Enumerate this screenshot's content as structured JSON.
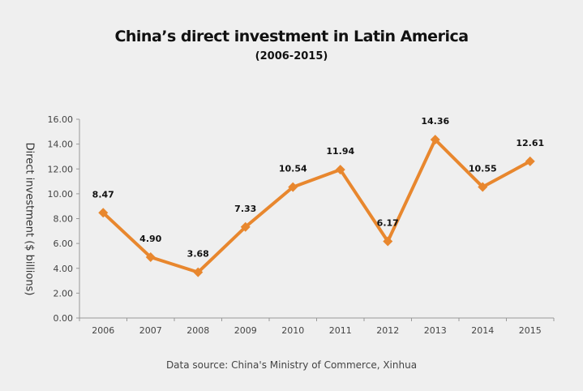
{
  "chart_data": {
    "type": "line",
    "title": "China’s direct investment in Latin America",
    "subtitle": "(2006-2015)",
    "xlabel": "",
    "ylabel": "Direct investment ($ billions)",
    "categories": [
      "2006",
      "2007",
      "2008",
      "2009",
      "2010",
      "2011",
      "2012",
      "2013",
      "2014",
      "2015"
    ],
    "values": [
      8.47,
      4.9,
      3.68,
      7.33,
      10.54,
      11.94,
      6.17,
      14.36,
      10.55,
      12.61
    ],
    "data_labels": [
      "8.47",
      "4.90",
      "3.68",
      "7.33",
      "10.54",
      "11.94",
      "6.17",
      "14.36",
      "10.55",
      "12.61"
    ],
    "ylim": [
      0,
      16
    ],
    "yticks": [
      "0.00",
      "2.00",
      "4.00",
      "6.00",
      "8.00",
      "10.00",
      "12.00",
      "14.00",
      "16.00"
    ],
    "grid": false,
    "marker": "diamond",
    "color": "#e8872e",
    "source": "Data source: China's Ministry of Commerce, Xinhua"
  }
}
